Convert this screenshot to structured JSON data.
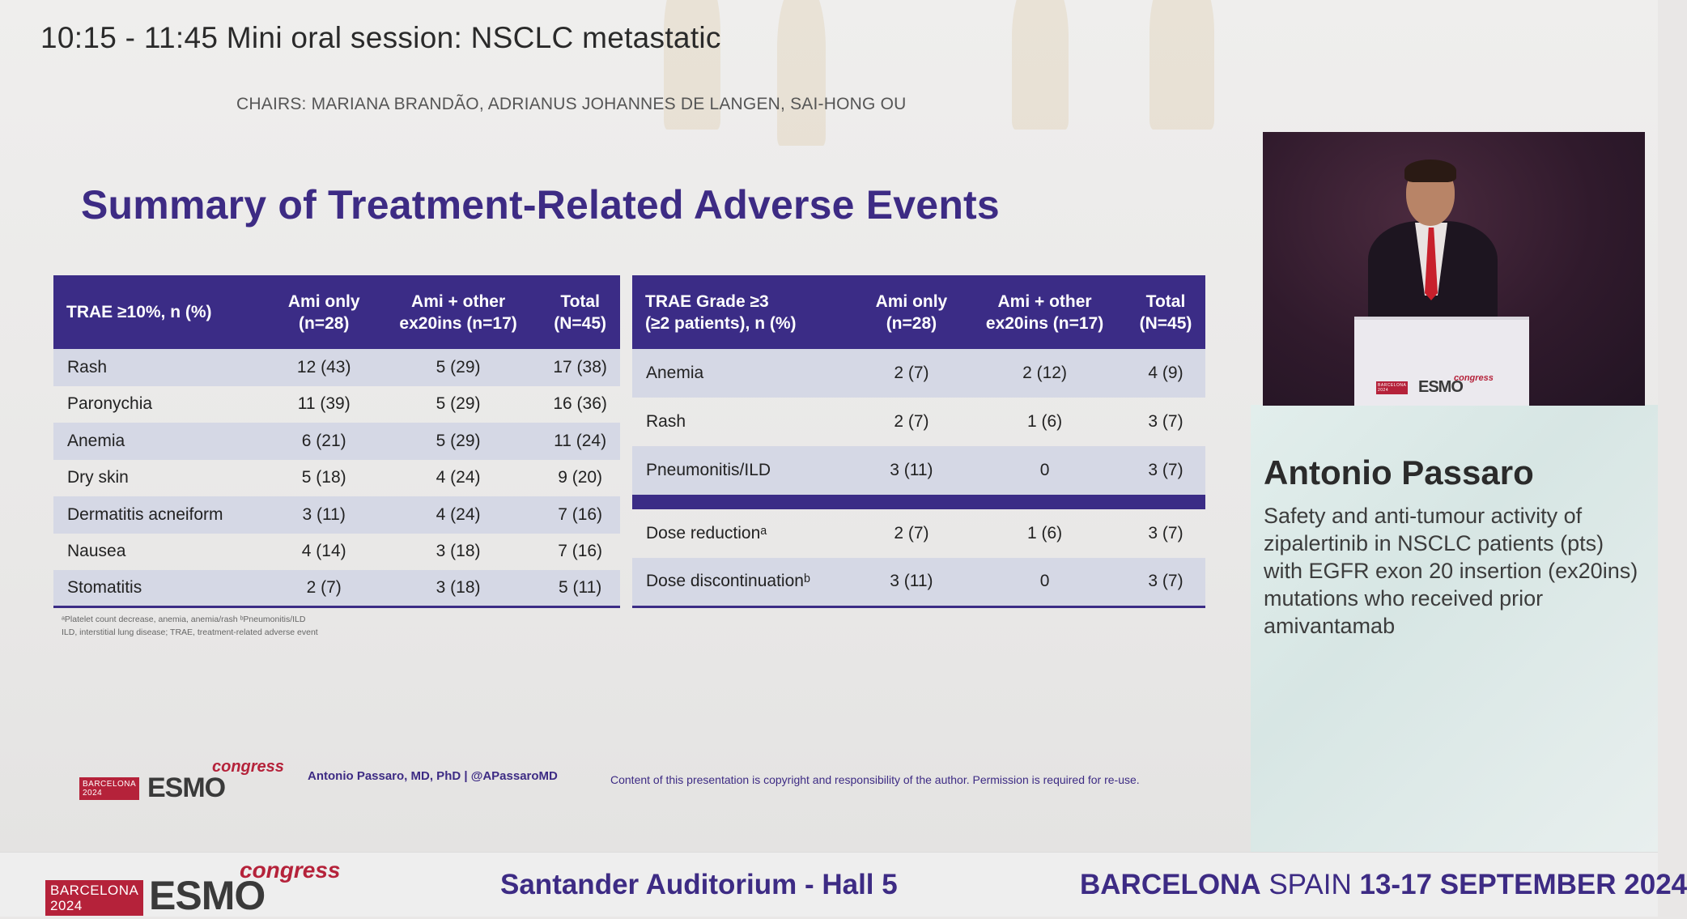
{
  "session": {
    "title": "10:15 - 11:45  Mini oral session: NSCLC metastatic",
    "chairs": "CHAIRS: MARIANA BRANDÃO, ADRIANUS JOHANNES DE LANGEN, SAI-HONG OU"
  },
  "slide": {
    "title": "Summary of Treatment-Related Adverse Events",
    "table1": {
      "headers": [
        "TRAE ≥10%, n (%)",
        "Ami only\n(n=28)",
        "Ami + other\nex20ins (n=17)",
        "Total\n(N=45)"
      ],
      "rows": [
        [
          "Rash",
          "12 (43)",
          "5 (29)",
          "17 (38)"
        ],
        [
          "Paronychia",
          "11 (39)",
          "5 (29)",
          "16 (36)"
        ],
        [
          "Anemia",
          "6 (21)",
          "5 (29)",
          "11 (24)"
        ],
        [
          "Dry skin",
          "5 (18)",
          "4 (24)",
          "9 (20)"
        ],
        [
          "Dermatitis acneiform",
          "3 (11)",
          "4 (24)",
          "7 (16)"
        ],
        [
          "Nausea",
          "4 (14)",
          "3 (18)",
          "7 (16)"
        ],
        [
          "Stomatitis",
          "2 (7)",
          "3 (18)",
          "5 (11)"
        ]
      ]
    },
    "table2": {
      "headers": [
        "TRAE Grade ≥3\n(≥2 patients), n (%)",
        "Ami only\n(n=28)",
        "Ami + other\nex20ins (n=17)",
        "Total\n(N=45)"
      ],
      "rows": [
        [
          "Anemia",
          "2 (7)",
          "2 (12)",
          "4 (9)"
        ],
        [
          "Rash",
          "2 (7)",
          "1 (6)",
          "3 (7)"
        ],
        [
          "Pneumonitis/ILD",
          "3 (11)",
          "0",
          "3 (7)"
        ]
      ],
      "rows_after_divider": [
        [
          "Dose reductionᵃ",
          "2 (7)",
          "1 (6)",
          "3 (7)"
        ],
        [
          "Dose discontinuationᵇ",
          "3 (11)",
          "0",
          "3 (7)"
        ]
      ]
    },
    "footnote_line1": "ᵃPlatelet count decrease, anemia, anemia/rash ᵇPneumonitis/ILD",
    "footnote_line2": "ILD, interstitial lung disease; TRAE, treatment-related adverse event",
    "author_line": "Antonio Passaro, MD, PhD | @APassaroMD",
    "copyright": "Content of this presentation is copyright and responsibility of the author. Permission is required for re-use."
  },
  "speaker": {
    "name": "Antonio Passaro",
    "talk_title": "Safety and anti-tumour activity of zipalertinib in NSCLC patients (pts) with EGFR exon 20 insertion (ex20ins) mutations who received prior amivantamab"
  },
  "branding": {
    "barcelona_line1": "BARCELONA",
    "barcelona_line2": "2024",
    "esmo": "ESMO",
    "congress": "congress"
  },
  "bottom_bar": {
    "venue": "Santander Auditorium - Hall 5",
    "city_bold": "BARCELONA",
    "city_country": " SPAIN ",
    "dates": "13-17 SEPTEMBER 2024"
  },
  "colors": {
    "accent_purple": "#3b2c86",
    "esmo_red": "#b5223a",
    "row_shade": "#d5d8e5"
  }
}
